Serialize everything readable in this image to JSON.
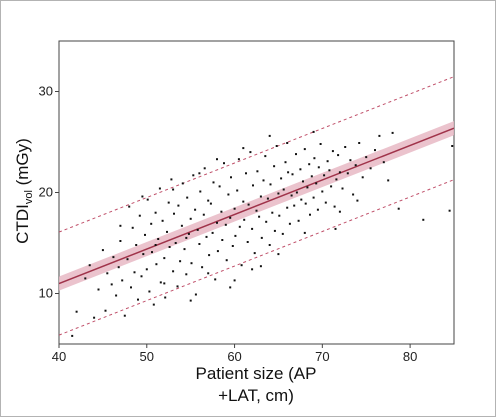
{
  "chart_data": {
    "type": "scatter",
    "title": "",
    "xlabel_line1": "Patient size (AP",
    "xlabel_line2": "+LAT, cm)",
    "ylabel_main": "CTDI",
    "ylabel_sub": "vol",
    "ylabel_unit": " (mGy)",
    "xlim": [
      40,
      85
    ],
    "ylim": [
      5,
      35
    ],
    "x_ticks": [
      40,
      50,
      60,
      70,
      80
    ],
    "y_ticks": [
      10,
      20,
      30
    ],
    "grid": false,
    "legend": "none",
    "regression": {
      "slope": 0.342,
      "intercept": -2.7,
      "ci_halfwidth": 0.7,
      "pi_halfwidth": 5.1
    },
    "colors": {
      "points": "#111111",
      "fit_line": "#a0334a",
      "ci_band": "#e8b9c4",
      "pi_line": "#c0506a",
      "axis": "#444444"
    },
    "points": [
      [
        41.5,
        5.8
      ],
      [
        42.0,
        8.2
      ],
      [
        43.0,
        11.5
      ],
      [
        43.5,
        12.8
      ],
      [
        44.0,
        7.6
      ],
      [
        44.5,
        10.4
      ],
      [
        45.0,
        14.3
      ],
      [
        45.3,
        8.3
      ],
      [
        45.5,
        12.0
      ],
      [
        46.0,
        10.9
      ],
      [
        46.2,
        13.6
      ],
      [
        46.5,
        9.8
      ],
      [
        46.8,
        12.6
      ],
      [
        47.0,
        15.2
      ],
      [
        47.2,
        11.3
      ],
      [
        47.5,
        7.8
      ],
      [
        47.8,
        13.4
      ],
      [
        48.0,
        18.6
      ],
      [
        48.2,
        10.6
      ],
      [
        48.4,
        16.5
      ],
      [
        48.6,
        12.1
      ],
      [
        48.8,
        14.8
      ],
      [
        49.0,
        9.4
      ],
      [
        49.2,
        17.7
      ],
      [
        49.4,
        11.7
      ],
      [
        49.6,
        13.9
      ],
      [
        49.8,
        15.8
      ],
      [
        50.0,
        12.4
      ],
      [
        50.1,
        19.3
      ],
      [
        50.3,
        10.2
      ],
      [
        50.5,
        16.9
      ],
      [
        50.6,
        14.1
      ],
      [
        50.8,
        8.9
      ],
      [
        51.0,
        18.0
      ],
      [
        51.1,
        12.9
      ],
      [
        51.3,
        15.4
      ],
      [
        51.5,
        20.4
      ],
      [
        51.6,
        11.1
      ],
      [
        51.8,
        17.2
      ],
      [
        52.0,
        13.5
      ],
      [
        52.1,
        9.6
      ],
      [
        52.3,
        16.1
      ],
      [
        52.5,
        19.0
      ],
      [
        52.6,
        14.6
      ],
      [
        52.8,
        21.3
      ],
      [
        53.0,
        12.2
      ],
      [
        53.1,
        17.9
      ],
      [
        53.3,
        15.0
      ],
      [
        53.5,
        10.7
      ],
      [
        53.6,
        18.7
      ],
      [
        53.8,
        13.2
      ],
      [
        54.0,
        16.7
      ],
      [
        54.1,
        20.9
      ],
      [
        54.3,
        14.4
      ],
      [
        54.5,
        11.9
      ],
      [
        54.6,
        19.5
      ],
      [
        54.8,
        15.9
      ],
      [
        55.0,
        17.4
      ],
      [
        55.1,
        13.0
      ],
      [
        55.3,
        21.7
      ],
      [
        55.5,
        18.3
      ],
      [
        55.6,
        9.9
      ],
      [
        55.8,
        16.3
      ],
      [
        56.0,
        14.9
      ],
      [
        56.1,
        20.1
      ],
      [
        56.3,
        12.6
      ],
      [
        56.5,
        17.8
      ],
      [
        56.6,
        22.4
      ],
      [
        56.8,
        15.6
      ],
      [
        57.0,
        19.2
      ],
      [
        57.1,
        13.8
      ],
      [
        57.3,
        18.9
      ],
      [
        57.5,
        16.0
      ],
      [
        57.6,
        21.0
      ],
      [
        57.8,
        11.4
      ],
      [
        58.0,
        17.0
      ],
      [
        58.1,
        14.2
      ],
      [
        58.3,
        20.6
      ],
      [
        58.5,
        18.1
      ],
      [
        58.6,
        15.3
      ],
      [
        58.8,
        22.9
      ],
      [
        59.0,
        16.8
      ],
      [
        59.1,
        13.3
      ],
      [
        59.3,
        19.8
      ],
      [
        59.5,
        17.5
      ],
      [
        59.6,
        21.5
      ],
      [
        59.8,
        14.7
      ],
      [
        60.0,
        18.4
      ],
      [
        60.1,
        15.7
      ],
      [
        60.3,
        20.2
      ],
      [
        60.5,
        23.3
      ],
      [
        60.6,
        16.6
      ],
      [
        60.8,
        12.8
      ],
      [
        61.0,
        19.1
      ],
      [
        61.1,
        17.3
      ],
      [
        61.3,
        21.9
      ],
      [
        61.5,
        15.1
      ],
      [
        61.6,
        18.8
      ],
      [
        61.8,
        24.0
      ],
      [
        62.0,
        16.4
      ],
      [
        62.1,
        20.7
      ],
      [
        62.3,
        14.0
      ],
      [
        62.5,
        18.2
      ],
      [
        62.6,
        22.1
      ],
      [
        62.8,
        17.6
      ],
      [
        63.0,
        19.6
      ],
      [
        63.1,
        15.5
      ],
      [
        63.3,
        21.2
      ],
      [
        63.5,
        23.6
      ],
      [
        63.6,
        17.1
      ],
      [
        63.8,
        19.4
      ],
      [
        64.0,
        14.8
      ],
      [
        64.1,
        20.8
      ],
      [
        64.3,
        18.0
      ],
      [
        64.5,
        22.6
      ],
      [
        64.6,
        16.2
      ],
      [
        64.8,
        24.6
      ],
      [
        65.0,
        19.9
      ],
      [
        65.1,
        17.7
      ],
      [
        65.3,
        21.4
      ],
      [
        65.5,
        15.9
      ],
      [
        65.6,
        20.3
      ],
      [
        65.8,
        23.0
      ],
      [
        66.0,
        18.5
      ],
      [
        66.1,
        22.0
      ],
      [
        66.3,
        16.9
      ],
      [
        66.5,
        19.7
      ],
      [
        66.6,
        21.8
      ],
      [
        66.8,
        18.7
      ],
      [
        67.0,
        23.8
      ],
      [
        67.1,
        20.0
      ],
      [
        67.3,
        17.2
      ],
      [
        67.5,
        22.3
      ],
      [
        67.6,
        19.3
      ],
      [
        67.8,
        21.1
      ],
      [
        68.0,
        24.3
      ],
      [
        68.1,
        18.9
      ],
      [
        68.3,
        20.5
      ],
      [
        68.5,
        22.8
      ],
      [
        68.6,
        17.8
      ],
      [
        68.8,
        21.6
      ],
      [
        69.0,
        19.5
      ],
      [
        69.1,
        23.4
      ],
      [
        69.3,
        20.9
      ],
      [
        69.5,
        18.3
      ],
      [
        69.6,
        22.5
      ],
      [
        69.8,
        24.8
      ],
      [
        70.0,
        20.1
      ],
      [
        70.2,
        21.7
      ],
      [
        70.4,
        19.0
      ],
      [
        70.6,
        23.1
      ],
      [
        70.8,
        22.2
      ],
      [
        71.0,
        20.6
      ],
      [
        71.2,
        24.1
      ],
      [
        71.4,
        18.6
      ],
      [
        71.6,
        21.3
      ],
      [
        71.8,
        23.7
      ],
      [
        72.0,
        22.0
      ],
      [
        72.3,
        20.4
      ],
      [
        72.6,
        24.5
      ],
      [
        72.9,
        21.9
      ],
      [
        73.2,
        23.2
      ],
      [
        73.5,
        19.8
      ],
      [
        73.8,
        22.7
      ],
      [
        74.2,
        24.9
      ],
      [
        74.6,
        21.5
      ],
      [
        75.0,
        23.5
      ],
      [
        75.5,
        22.4
      ],
      [
        76.0,
        24.2
      ],
      [
        76.5,
        25.6
      ],
      [
        77.0,
        23.0
      ],
      [
        77.5,
        21.2
      ],
      [
        78.0,
        25.9
      ],
      [
        78.7,
        18.4
      ],
      [
        81.5,
        17.3
      ],
      [
        84.5,
        18.2
      ],
      [
        84.8,
        24.6
      ],
      [
        52.0,
        11.0
      ],
      [
        55.0,
        9.3
      ],
      [
        57.0,
        12.0
      ],
      [
        60.0,
        11.3
      ],
      [
        62.0,
        12.4
      ],
      [
        47.0,
        16.7
      ],
      [
        49.5,
        19.6
      ],
      [
        53.0,
        20.3
      ],
      [
        56.0,
        21.9
      ],
      [
        58.0,
        23.3
      ],
      [
        61.0,
        24.4
      ],
      [
        64.0,
        25.6
      ],
      [
        66.0,
        24.9
      ],
      [
        69.0,
        26.0
      ],
      [
        72.0,
        18.1
      ],
      [
        74.0,
        19.2
      ],
      [
        71.5,
        16.4
      ],
      [
        68.0,
        16.0
      ],
      [
        65.0,
        13.9
      ],
      [
        63.0,
        12.7
      ],
      [
        59.5,
        10.6
      ],
      [
        54.5,
        15.5
      ],
      [
        51.0,
        14.8
      ]
    ]
  }
}
